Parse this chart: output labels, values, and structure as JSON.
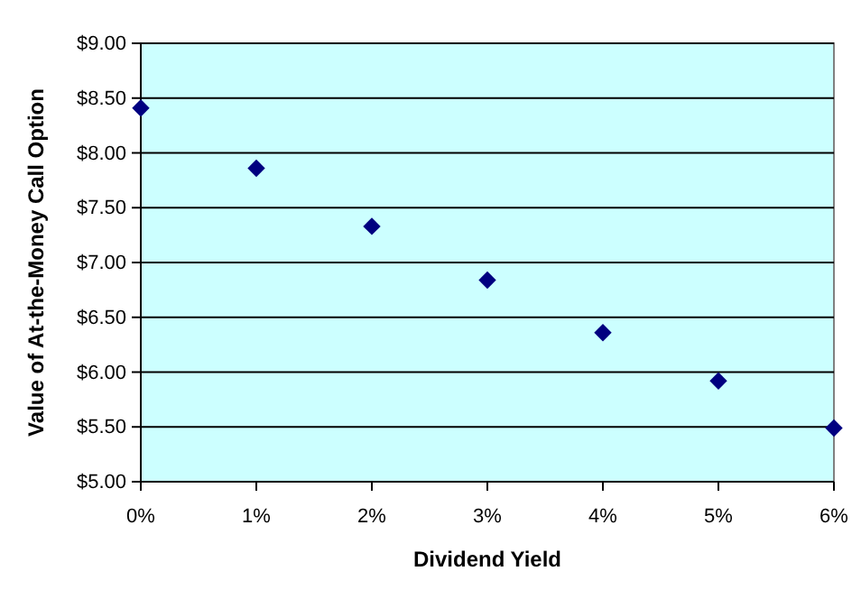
{
  "chart_data": {
    "type": "scatter",
    "xlabel": "Dividend Yield",
    "ylabel": "Value of At-the-Money Call Option",
    "x": [
      0,
      1,
      2,
      3,
      4,
      5,
      6
    ],
    "series": [
      {
        "color": "#000080",
        "values": [
          8.41,
          7.86,
          7.33,
          6.84,
          6.36,
          5.92,
          5.49
        ]
      }
    ],
    "xlim": [
      0,
      6
    ],
    "xticks": [
      {
        "value": 0,
        "label": "0%"
      },
      {
        "value": 1,
        "label": "1%"
      },
      {
        "value": 2,
        "label": "2%"
      },
      {
        "value": 3,
        "label": "3%"
      },
      {
        "value": 4,
        "label": "4%"
      },
      {
        "value": 5,
        "label": "5%"
      },
      {
        "value": 6,
        "label": "6%"
      }
    ],
    "ylim": [
      5,
      9
    ],
    "yticks": [
      {
        "value": 5,
        "label": "$5.00"
      },
      {
        "value": 5.5,
        "label": "$5.50"
      },
      {
        "value": 6,
        "label": "$6.00"
      },
      {
        "value": 6.5,
        "label": "$6.50"
      },
      {
        "value": 7,
        "label": "$7.00"
      },
      {
        "value": 7.5,
        "label": "$7.50"
      },
      {
        "value": 8,
        "label": "$8.00"
      },
      {
        "value": 8.5,
        "label": "$8.50"
      },
      {
        "value": 9,
        "label": "$9.00"
      }
    ],
    "grid": "y",
    "marker": "diamond"
  }
}
